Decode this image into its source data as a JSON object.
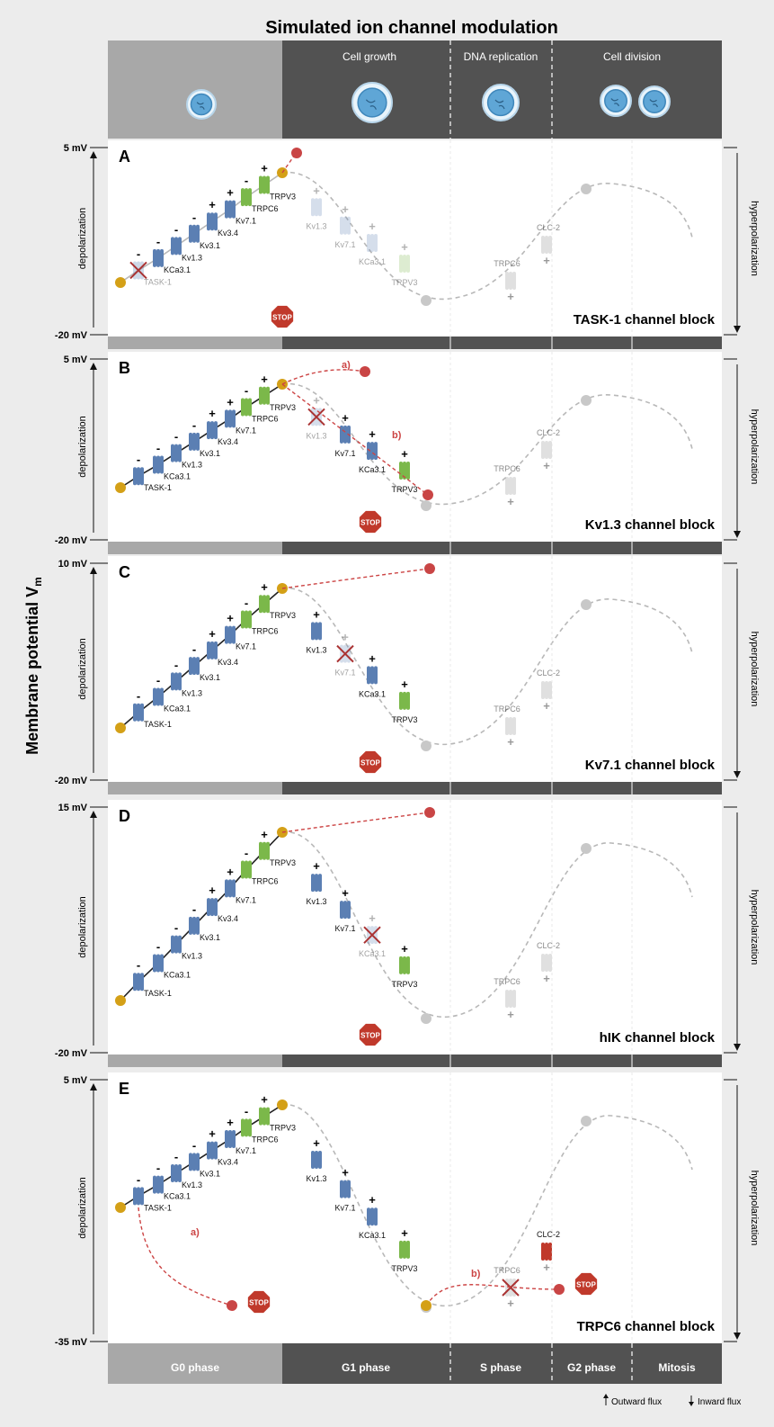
{
  "title": "Simulated ion channel modulation",
  "cycle": {
    "stages": [
      "Cell growth",
      "DNA replication",
      "Cell division"
    ],
    "phases": [
      "G0 phase",
      "G1 phase",
      "S phase",
      "G2 phase",
      "Mitosis"
    ]
  },
  "y_axis_label": "Membrane potential V",
  "y_axis_sub": "m",
  "legend": {
    "outward": "Outward flux",
    "inward": "Inward flux"
  },
  "side_labels": {
    "left": "depolarization",
    "right": "hyperpolarization"
  },
  "stop_label": "STOP",
  "colors": {
    "active_line": "#222222",
    "blocked_path": "#cc4444",
    "normal_path": "#b8b8b8",
    "k_channel": "#5b7fb3",
    "trp_channel": "#7bb84a",
    "clc_channel": "#c0392b",
    "marker_start": "#d4a017",
    "marker_end": "#c94545",
    "marker_grey": "#c8c8c8",
    "dark_band": "#525252",
    "light_band": "#a8a8a8"
  },
  "panels": [
    {
      "letter": "A",
      "title": "TASK-1 channel block",
      "vmax": "5 mV",
      "vmin": "-20 mV",
      "blocked": [
        "TASK-1"
      ],
      "annotations": []
    },
    {
      "letter": "B",
      "title": "Kv1.3 channel block",
      "vmax": "5 mV",
      "vmin": "-20 mV",
      "blocked": [
        "Kv1.3"
      ],
      "annotations": [
        "a)",
        "b)"
      ]
    },
    {
      "letter": "C",
      "title": "Kv7.1 channel block",
      "vmax": "10 mV",
      "vmin": "-20 mV",
      "blocked": [
        "Kv7.1"
      ],
      "annotations": []
    },
    {
      "letter": "D",
      "title": "hIK channel block",
      "vmax": "15 mV",
      "vmin": "-20 mV",
      "blocked": [
        "KCa3.1"
      ],
      "annotations": []
    },
    {
      "letter": "E",
      "title": "TRPC6 channel block",
      "vmax": "5 mV",
      "vmin": "-35 mV",
      "blocked": [
        "TRPC6"
      ],
      "annotations": [
        "a)",
        "b)"
      ]
    }
  ],
  "channels": [
    "TASK-1",
    "KCa3.1",
    "Kv1.3",
    "Kv3.1",
    "Kv3.4",
    "Kv7.1",
    "TRPC6",
    "TRPV3",
    "Kv1.3",
    "Kv7.1",
    "KCa3.1",
    "TRPV3",
    "TRPC6",
    "CLC-2"
  ]
}
